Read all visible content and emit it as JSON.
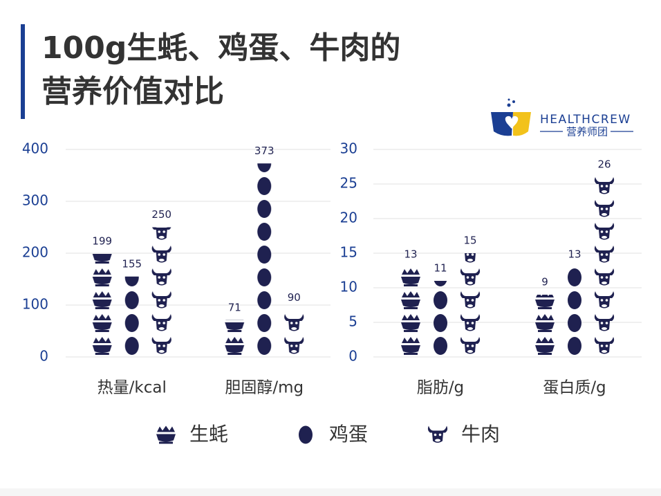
{
  "title_lines": [
    "100g生蚝、鸡蛋、牛肉的",
    "营养价值对比"
  ],
  "logo": {
    "brand": "HEALTHCREW",
    "subtitle": "营养师团"
  },
  "chart_data": {
    "type": "pictograph",
    "categories": [
      "热量/kcal",
      "胆固醇/mg",
      "脂肪/g",
      "蛋白质/g"
    ],
    "series": [
      {
        "name": "生蚝",
        "color": "#1f2150",
        "values": [
          199,
          71,
          13,
          9
        ]
      },
      {
        "name": "鸡蛋",
        "color": "#1f2150",
        "values": [
          155,
          373,
          11,
          13
        ]
      },
      {
        "name": "牛肉",
        "color": "#1f2150",
        "values": [
          250,
          90,
          15,
          26
        ]
      }
    ],
    "panels": [
      {
        "ylim": [
          0,
          400
        ],
        "yticks": [
          0,
          100,
          200,
          300,
          400
        ]
      },
      {
        "ylim": [
          0,
          30
        ],
        "yticks": [
          0,
          5,
          10,
          15,
          20,
          25,
          30
        ]
      }
    ],
    "grid": true
  }
}
